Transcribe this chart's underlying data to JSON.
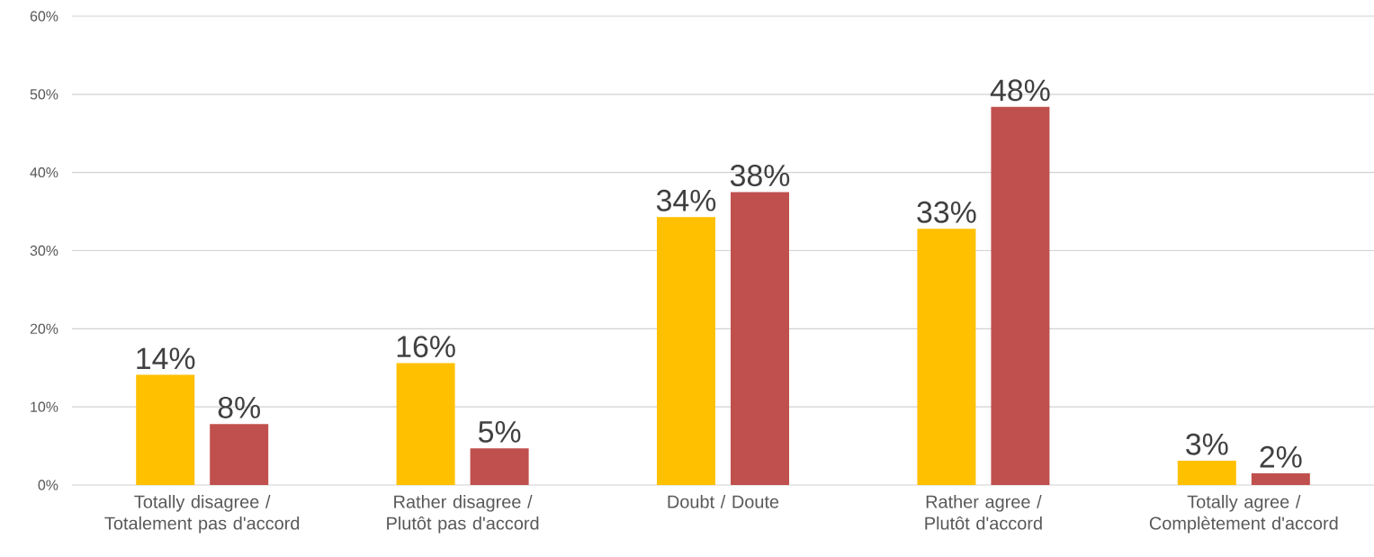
{
  "chart_data": {
    "type": "bar",
    "categories": [
      "Totally disagree / Totalement pas d'accord",
      "Rather disagree / Plutôt pas d'accord",
      "Doubt / Doute",
      "Rather agree / Plutôt d'accord",
      "Totally agree / Complètement d'accord"
    ],
    "series": [
      {
        "color": "#ffc000",
        "values": [
          14.1,
          15.6,
          34.3,
          32.8,
          3.1
        ],
        "value_labels": [
          "14%",
          "16%",
          "34%",
          "33%",
          "3%"
        ]
      },
      {
        "color": "#c0504d",
        "values": [
          7.8,
          4.7,
          37.5,
          48.4,
          1.5
        ],
        "value_labels": [
          "8%",
          "5%",
          "38%",
          "48%",
          "2%"
        ]
      }
    ],
    "ylim": [
      0,
      60
    ],
    "yticks": [
      {
        "value": 0,
        "label": "0%"
      },
      {
        "value": 10,
        "label": "10%"
      },
      {
        "value": 20,
        "label": "20%"
      },
      {
        "value": 30,
        "label": "30%"
      },
      {
        "value": 40,
        "label": "40%"
      },
      {
        "value": 50,
        "label": "50%"
      },
      {
        "value": 60,
        "label": "60%"
      }
    ],
    "grid": "y"
  }
}
